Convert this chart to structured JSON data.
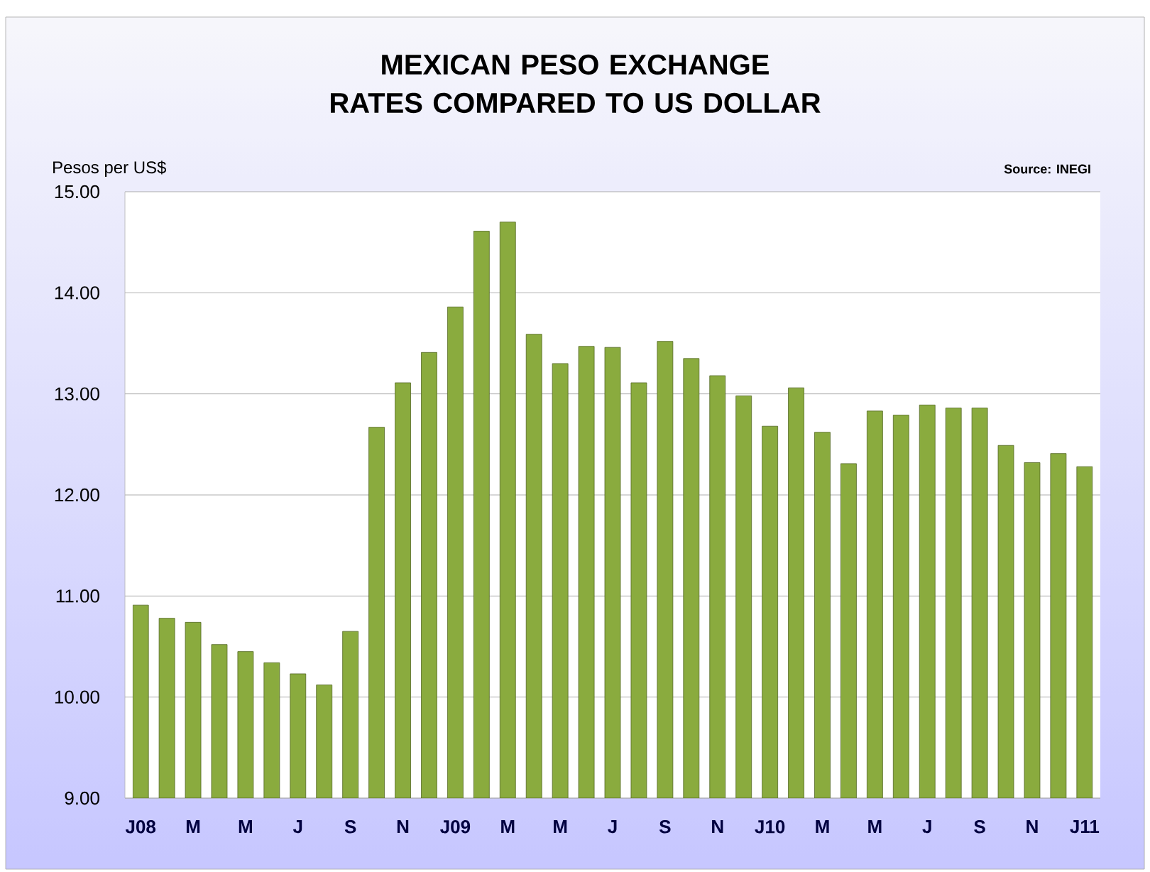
{
  "chart_data": {
    "type": "bar",
    "title": "MEXICAN PESO EXCHANGE RATES COMPARED TO US DOLLAR",
    "ylabel": "Pesos per US$",
    "annotations": [
      "Source: INEGI"
    ],
    "categories": [
      "J08",
      null,
      "M",
      null,
      "M",
      null,
      "J",
      null,
      "S",
      null,
      "N",
      null,
      "J09",
      null,
      "M",
      null,
      "M",
      null,
      "J",
      null,
      "S",
      null,
      "N",
      null,
      "J10",
      null,
      "M",
      null,
      "M",
      null,
      "J",
      null,
      "S",
      null,
      "N",
      null,
      "J11"
    ],
    "values": [
      10.91,
      10.78,
      10.74,
      10.52,
      10.45,
      10.34,
      10.23,
      10.12,
      10.65,
      12.67,
      13.11,
      13.41,
      13.86,
      14.61,
      14.7,
      13.59,
      13.3,
      13.47,
      13.46,
      13.11,
      13.52,
      13.35,
      13.18,
      12.98,
      12.68,
      13.06,
      12.62,
      12.31,
      12.83,
      12.79,
      12.89,
      12.86,
      12.86,
      12.49,
      12.32,
      12.41,
      12.28
    ],
    "color": "#8aab3e",
    "ylim": [
      9,
      15
    ],
    "yticks": [
      {
        "value": 9,
        "label": "9.00"
      },
      {
        "value": 10,
        "label": "10.00"
      },
      {
        "value": 11,
        "label": "11.00"
      },
      {
        "value": 12,
        "label": "12.00"
      },
      {
        "value": 13,
        "label": "13.00"
      },
      {
        "value": 14,
        "label": "14.00"
      },
      {
        "value": 15,
        "label": "15.00"
      }
    ],
    "grid": "y"
  }
}
